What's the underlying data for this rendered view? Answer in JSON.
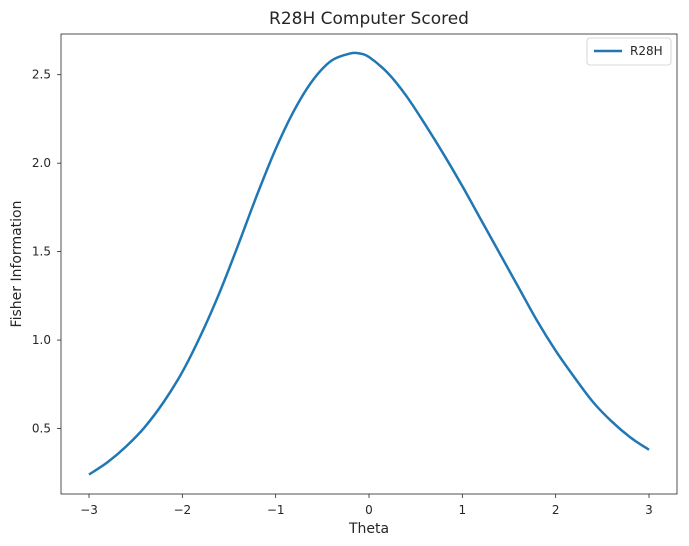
{
  "chart_data": {
    "type": "line",
    "title": "R28H Computer Scored",
    "xlabel": "Theta",
    "ylabel": "Fisher Information",
    "xlim": [
      -3.3,
      3.3
    ],
    "ylim": [
      0.13,
      2.73
    ],
    "grid": false,
    "legend_position": "top-right",
    "x_ticks": [
      -3,
      -2,
      -1,
      0,
      1,
      2,
      3
    ],
    "x_tick_labels": [
      "−3",
      "−2",
      "−1",
      "0",
      "1",
      "2",
      "3"
    ],
    "y_ticks": [
      0.5,
      1.0,
      1.5,
      2.0,
      2.5
    ],
    "y_tick_labels": [
      "0.5",
      "1.0",
      "1.5",
      "2.0",
      "2.5"
    ],
    "series": [
      {
        "name": "R28H",
        "color": "#1f77b4",
        "x": [
          -3.0,
          -2.8,
          -2.6,
          -2.4,
          -2.2,
          -2.0,
          -1.8,
          -1.6,
          -1.4,
          -1.2,
          -1.0,
          -0.8,
          -0.6,
          -0.4,
          -0.2,
          -0.1,
          0.0,
          0.2,
          0.4,
          0.6,
          0.8,
          1.0,
          1.2,
          1.4,
          1.6,
          1.8,
          2.0,
          2.2,
          2.4,
          2.6,
          2.8,
          3.0
        ],
        "y": [
          0.24,
          0.31,
          0.4,
          0.51,
          0.65,
          0.82,
          1.03,
          1.27,
          1.54,
          1.82,
          2.08,
          2.3,
          2.47,
          2.58,
          2.62,
          2.62,
          2.6,
          2.51,
          2.38,
          2.22,
          2.05,
          1.87,
          1.68,
          1.49,
          1.3,
          1.11,
          0.94,
          0.79,
          0.65,
          0.54,
          0.45,
          0.38
        ]
      }
    ]
  }
}
